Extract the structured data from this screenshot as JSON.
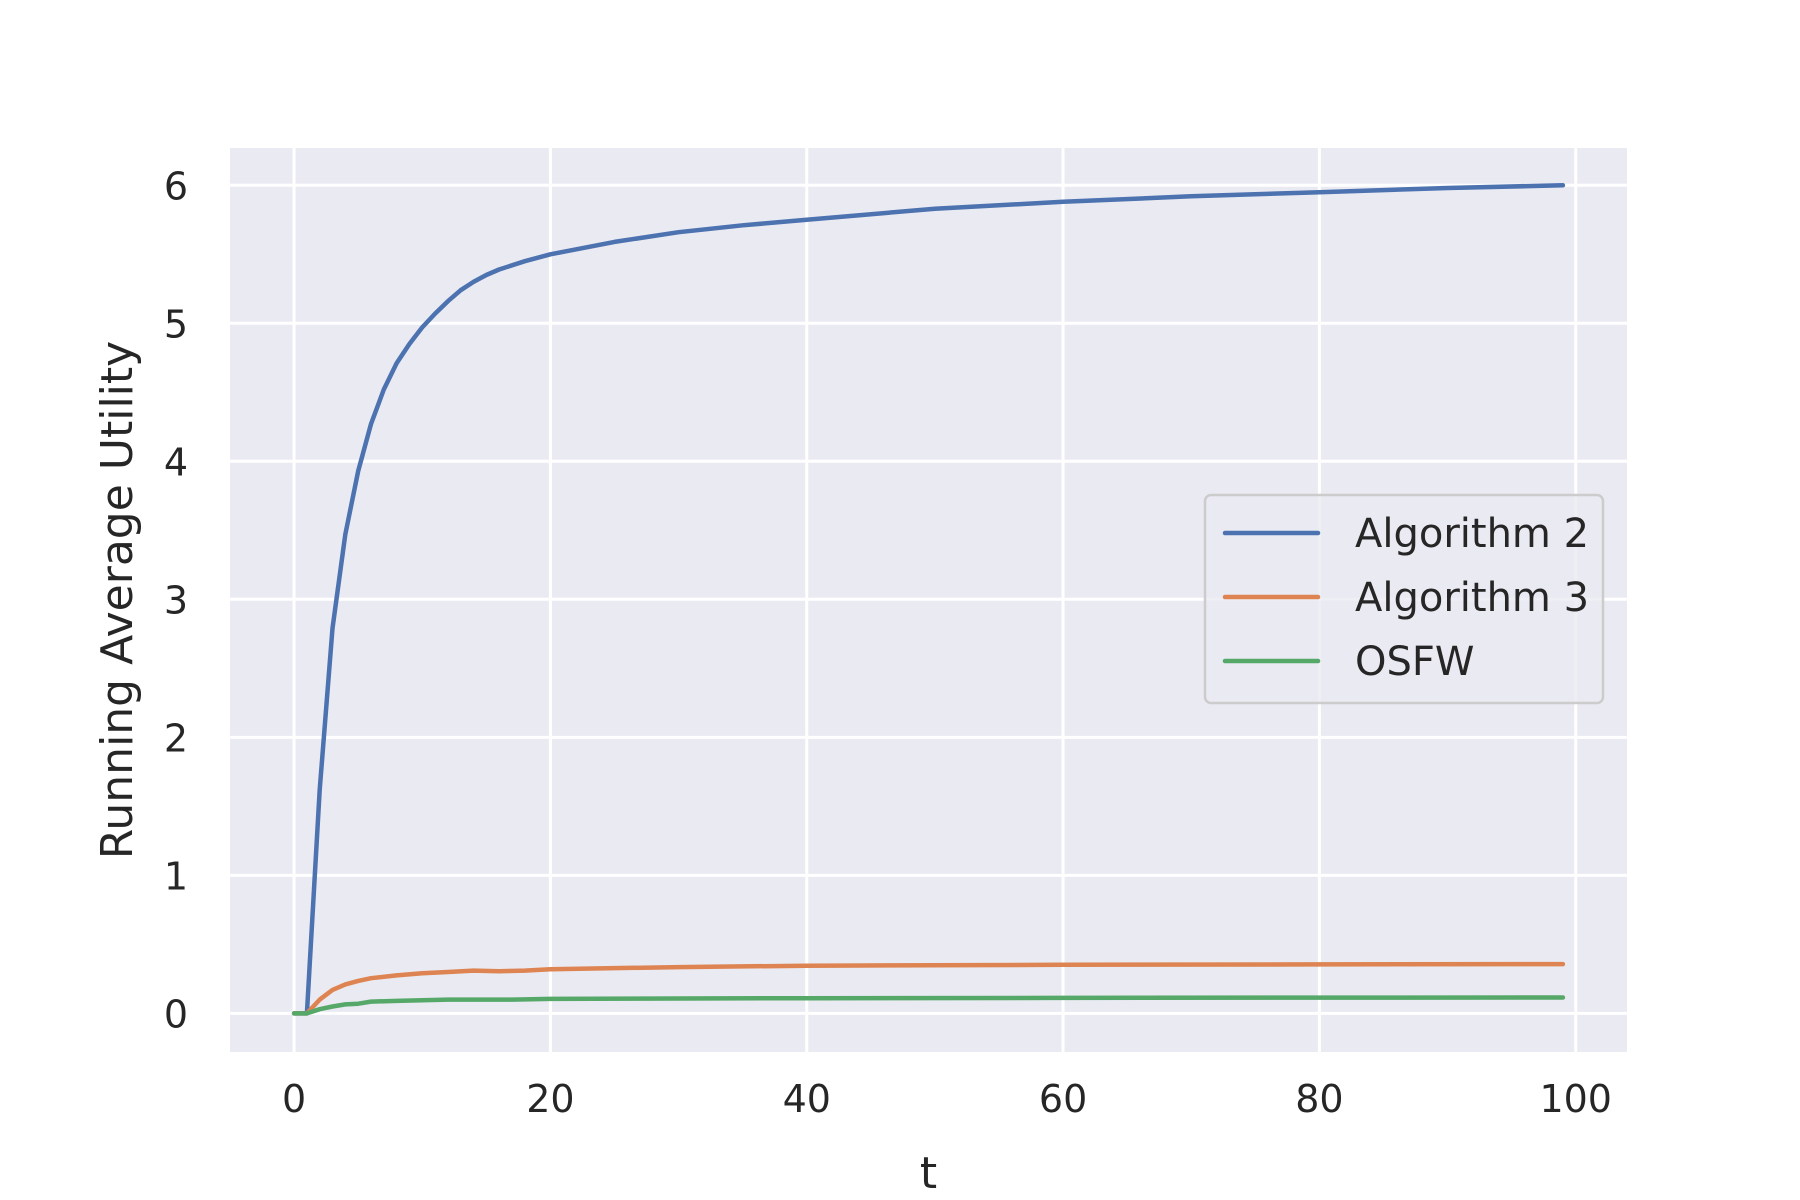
{
  "chart_data": {
    "type": "line",
    "title": "",
    "xlabel": "t",
    "ylabel": "Running Average Utility",
    "xlim": [
      -5,
      104
    ],
    "ylim": [
      -0.28,
      6.27
    ],
    "xticks": [
      0,
      20,
      40,
      60,
      80,
      100
    ],
    "yticks": [
      0,
      1,
      2,
      3,
      4,
      5,
      6
    ],
    "grid": true,
    "legend_position": "center-right",
    "colors": {
      "background": "#eaeaf2",
      "grid": "#ffffff",
      "legend_border": "#cccccc"
    },
    "series": [
      {
        "name": "Algorithm 2",
        "color": "#4c72b0",
        "x": [
          0,
          1,
          2,
          3,
          4,
          5,
          6,
          7,
          8,
          9,
          10,
          11,
          12,
          13,
          14,
          15,
          16,
          18,
          20,
          25,
          30,
          35,
          40,
          50,
          60,
          70,
          80,
          90,
          99
        ],
        "y": [
          0,
          0,
          1.62,
          2.79,
          3.47,
          3.93,
          4.27,
          4.52,
          4.71,
          4.85,
          4.97,
          5.07,
          5.16,
          5.24,
          5.3,
          5.35,
          5.39,
          5.45,
          5.5,
          5.59,
          5.66,
          5.71,
          5.75,
          5.83,
          5.88,
          5.92,
          5.95,
          5.98,
          6.0
        ]
      },
      {
        "name": "Algorithm 3",
        "color": "#dd8452",
        "x": [
          0,
          1,
          2,
          3,
          4,
          5,
          6,
          8,
          10,
          12,
          14,
          16,
          18,
          20,
          30,
          40,
          60,
          80,
          99
        ],
        "y": [
          0,
          0,
          0.1,
          0.17,
          0.21,
          0.235,
          0.255,
          0.275,
          0.29,
          0.3,
          0.31,
          0.305,
          0.31,
          0.32,
          0.335,
          0.345,
          0.352,
          0.355,
          0.357
        ]
      },
      {
        "name": "OSFW",
        "color": "#55a868",
        "x": [
          0,
          1,
          2,
          3,
          4,
          5,
          6,
          8,
          10,
          12,
          15,
          17,
          20,
          30,
          40,
          60,
          80,
          99
        ],
        "y": [
          0,
          0,
          0.03,
          0.05,
          0.065,
          0.07,
          0.085,
          0.09,
          0.095,
          0.1,
          0.1,
          0.1,
          0.105,
          0.108,
          0.11,
          0.112,
          0.114,
          0.115
        ]
      }
    ]
  }
}
